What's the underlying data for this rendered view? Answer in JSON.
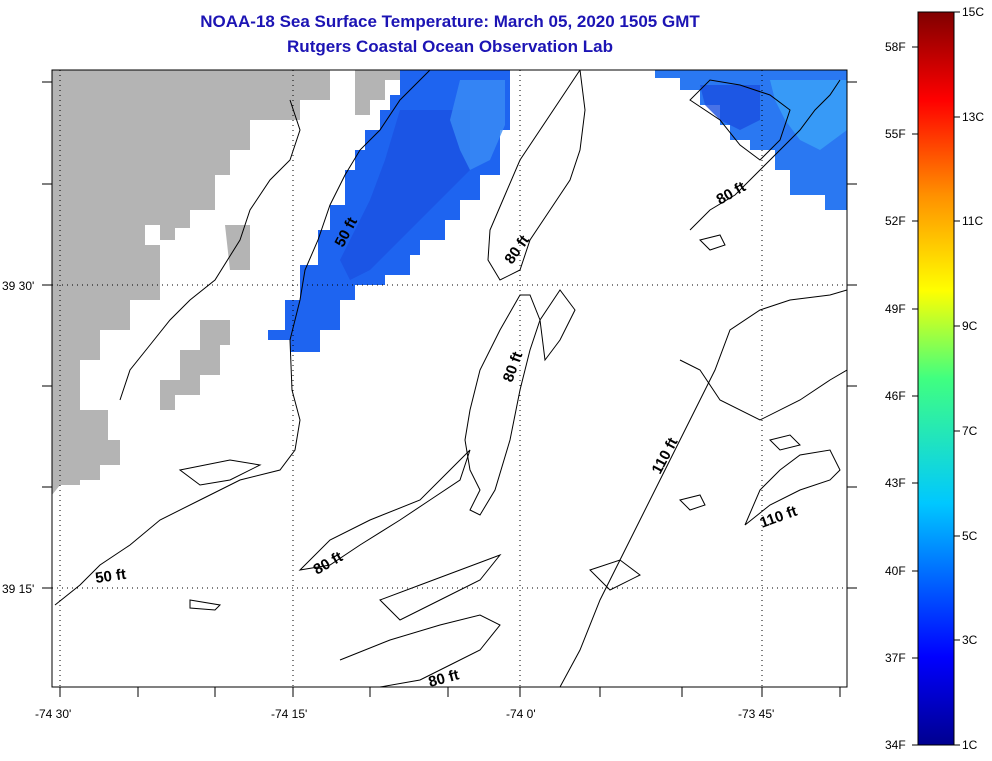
{
  "title": {
    "line1": "NOAA-18 Sea Surface Temperature:  March 05, 2020 1505 GMT",
    "line2": "Rutgers Coastal Ocean Observation Lab"
  },
  "colors": {
    "title": "#1c14b4",
    "land": "#b4b4b4",
    "contour": "#000000",
    "sst_fill": "#1e64f0"
  },
  "axes": {
    "lon_labels": [
      "-74 30'",
      "-74 15'",
      "-74 0'",
      "-73 45'"
    ],
    "lat_labels": [
      "39 30'",
      "39 15'"
    ]
  },
  "contour_labels": [
    "50 ft",
    "80 ft",
    "80 ft",
    "80 ft",
    "110 ft",
    "110 ft",
    "50 ft",
    "80 ft",
    "80 ft"
  ],
  "colorbar": {
    "fahrenheit": [
      "58F",
      "55F",
      "52F",
      "49F",
      "46F",
      "43F",
      "40F",
      "37F",
      "34F"
    ],
    "celsius": [
      "15C",
      "13C",
      "11C",
      "9C",
      "7C",
      "5C",
      "3C",
      "1C"
    ]
  }
}
